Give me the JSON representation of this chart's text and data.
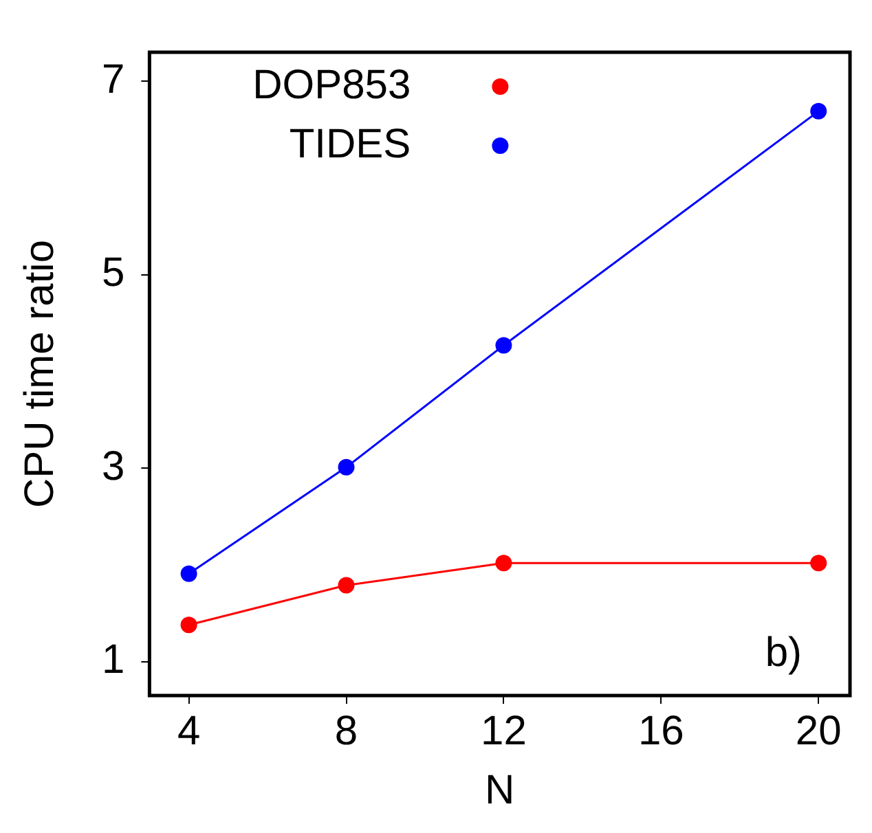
{
  "chart_data": {
    "type": "line",
    "xlabel": "N",
    "ylabel": "CPU time ratio",
    "x": [
      4,
      8,
      12,
      20
    ],
    "series": [
      {
        "name": "DOP853",
        "color": "#ff0000",
        "values": [
          1.38,
          1.79,
          2.02,
          2.02
        ]
      },
      {
        "name": "TIDES",
        "color": "#0000ff",
        "values": [
          1.91,
          3.01,
          4.27,
          6.69
        ]
      }
    ],
    "xlim": [
      3,
      20.8
    ],
    "xticks": [
      4,
      8,
      12,
      16,
      20
    ],
    "ylim": [
      0.65,
      7.3
    ],
    "yticks": [
      1,
      3,
      5,
      7
    ],
    "grid": false,
    "legend": "top",
    "marker": "circle",
    "line_style": "solid",
    "annotations": [
      "b)"
    ]
  }
}
